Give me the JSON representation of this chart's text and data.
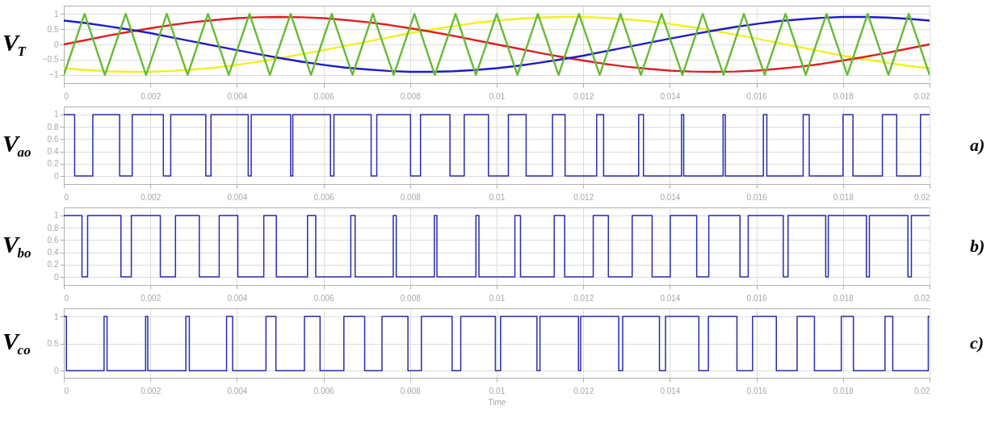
{
  "chart_data": [
    {
      "type": "line",
      "ylabel": "V$_{T}$",
      "xlim": [
        0,
        0.02
      ],
      "ylim": [
        -1.27,
        1.27
      ],
      "xticks": [
        0,
        0.002,
        0.004,
        0.006,
        0.008,
        0.01,
        0.012,
        0.014,
        0.016,
        0.018,
        0.02
      ],
      "yticks": [
        -1,
        -0.5,
        0,
        0.5,
        1
      ],
      "grid": true,
      "x": [
        0,
        0.0005,
        0.001,
        0.0015,
        0.002,
        0.0025,
        0.003,
        0.0035,
        0.004,
        0.0045,
        0.005,
        0.0055,
        0.006,
        0.0065,
        0.007,
        0.0075,
        0.008,
        0.0085,
        0.009,
        0.0095,
        0.01,
        0.0105,
        0.011,
        0.0115,
        0.012,
        0.0125,
        0.013,
        0.0135,
        0.014,
        0.0145,
        0.015,
        0.0155,
        0.016,
        0.0165,
        0.017,
        0.0175,
        0.018,
        0.0185,
        0.019,
        0.0195,
        0.02
      ],
      "series": [
        {
          "color": "#f0f020",
          "values": [
            -0.78,
            -0.84,
            -0.88,
            -0.9,
            -0.9,
            -0.87,
            -0.82,
            -0.76,
            -0.67,
            -0.57,
            -0.45,
            -0.32,
            -0.19,
            -0.05,
            0.09,
            0.23,
            0.37,
            0.49,
            0.6,
            0.7,
            0.78,
            0.84,
            0.88,
            0.9,
            0.9,
            0.87,
            0.82,
            0.76,
            0.67,
            0.57,
            0.45,
            0.32,
            0.19,
            0.05,
            -0.09,
            -0.23,
            -0.37,
            -0.49,
            -0.6,
            -0.7,
            -0.78
          ]
        },
        {
          "color": "#dd2020",
          "values": [
            0,
            0.14,
            0.28,
            0.41,
            0.53,
            0.64,
            0.73,
            0.8,
            0.86,
            0.89,
            0.9,
            0.89,
            0.86,
            0.8,
            0.73,
            0.64,
            0.53,
            0.41,
            0.28,
            0.14,
            0,
            -0.14,
            -0.28,
            -0.41,
            -0.53,
            -0.64,
            -0.73,
            -0.8,
            -0.86,
            -0.89,
            -0.9,
            -0.89,
            -0.86,
            -0.8,
            -0.73,
            -0.64,
            -0.53,
            -0.41,
            -0.28,
            -0.14,
            0
          ]
        },
        {
          "color": "#1c1cc8",
          "values": [
            0.78,
            0.7,
            0.6,
            0.49,
            0.37,
            0.23,
            0.09,
            -0.05,
            -0.19,
            -0.32,
            -0.45,
            -0.57,
            -0.67,
            -0.76,
            -0.82,
            -0.87,
            -0.9,
            -0.9,
            -0.88,
            -0.84,
            -0.78,
            -0.7,
            -0.6,
            -0.49,
            -0.37,
            -0.23,
            -0.09,
            0.05,
            0.19,
            0.32,
            0.45,
            0.57,
            0.67,
            0.76,
            0.82,
            0.87,
            0.9,
            0.9,
            0.88,
            0.84,
            0.78
          ]
        },
        {
          "color": "#66bb33",
          "x": [
            0,
            0.00048,
            0.00095,
            0.00143,
            0.0019,
            0.00238,
            0.00286,
            0.00333,
            0.00381,
            0.00429,
            0.00476,
            0.00524,
            0.00571,
            0.00619,
            0.00667,
            0.00714,
            0.00762,
            0.0081,
            0.00857,
            0.00905,
            0.00952,
            0.01,
            0.01048,
            0.01095,
            0.01143,
            0.0119,
            0.01238,
            0.01286,
            0.01333,
            0.01381,
            0.01429,
            0.01476,
            0.01524,
            0.01571,
            0.01619,
            0.01667,
            0.01714,
            0.01762,
            0.0181,
            0.01857,
            0.01905,
            0.01952,
            0.02
          ],
          "values": [
            -1,
            1,
            -1,
            1,
            -1,
            1,
            -1,
            1,
            -1,
            1,
            -1,
            1,
            -1,
            1,
            -1,
            1,
            -1,
            1,
            -1,
            1,
            -1,
            1,
            -1,
            1,
            -1,
            1,
            -1,
            1,
            -1,
            1,
            -1,
            1,
            -1,
            1,
            -1,
            1,
            -1,
            1,
            -1,
            1,
            -1,
            1,
            -1
          ]
        }
      ]
    },
    {
      "type": "step",
      "ylabel": "V$_{ao}$",
      "annotations": [
        "a)"
      ],
      "xlim": [
        0,
        0.02
      ],
      "ylim": [
        -0.13,
        1.13
      ],
      "xticks": [
        0,
        0.002,
        0.004,
        0.006,
        0.008,
        0.01,
        0.012,
        0.014,
        0.016,
        0.018,
        0.02
      ],
      "yticks": [
        0,
        0.2,
        0.4,
        0.6,
        0.8,
        1
      ],
      "grid": true,
      "series": [
        {
          "color": "#2b2bb0",
          "x": [
            0,
            0.00025,
            0.00067,
            0.00129,
            0.00158,
            0.0023,
            0.00247,
            0.00328,
            0.0034,
            0.00426,
            0.00433,
            0.00524,
            0.00529,
            0.00616,
            0.00624,
            0.0071,
            0.00723,
            0.00801,
            0.00824,
            0.00892,
            0.00925,
            0.00981,
            0.01027,
            0.01068,
            0.01129,
            0.01158,
            0.01231,
            0.01247,
            0.01328,
            0.01339,
            0.01427,
            0.01432,
            0.01523,
            0.01528,
            0.01616,
            0.01624,
            0.01708,
            0.01722,
            0.018,
            0.01823,
            0.01891,
            0.01924,
            0.01979,
            0.02
          ],
          "values": [
            1,
            0,
            1,
            0,
            1,
            0,
            1,
            0,
            1,
            0,
            1,
            0,
            1,
            0,
            1,
            0,
            1,
            0,
            1,
            0,
            1,
            0,
            1,
            0,
            1,
            0,
            1,
            0,
            1,
            0,
            1,
            0,
            1,
            0,
            1,
            0,
            1,
            0,
            1,
            0,
            1,
            0,
            1,
            1
          ]
        }
      ]
    },
    {
      "type": "step",
      "ylabel": "V$_{bo}$",
      "annotations": [
        "b)"
      ],
      "xlim": [
        0,
        0.02
      ],
      "ylim": [
        -0.13,
        1.13
      ],
      "xticks": [
        0,
        0.002,
        0.004,
        0.006,
        0.008,
        0.01,
        0.012,
        0.014,
        0.016,
        0.018,
        0.02
      ],
      "yticks": [
        0,
        0.2,
        0.4,
        0.6,
        0.8,
        1
      ],
      "grid": true,
      "series": [
        {
          "color": "#2b2bb0",
          "x": [
            0,
            0.00042,
            0.00055,
            0.00132,
            0.00156,
            0.00223,
            0.00258,
            0.00313,
            0.00359,
            0.00402,
            0.00462,
            0.00491,
            0.00563,
            0.00582,
            0.00663,
            0.00673,
            0.00761,
            0.00768,
            0.00856,
            0.00862,
            0.00952,
            0.00959,
            0.01042,
            0.01055,
            0.01133,
            0.01157,
            0.01223,
            0.01258,
            0.01313,
            0.01359,
            0.01401,
            0.01462,
            0.0149,
            0.01562,
            0.01581,
            0.01662,
            0.01673,
            0.0176,
            0.01766,
            0.01854,
            0.01861,
            0.0195,
            0.01958,
            0.02
          ],
          "values": [
            1,
            0,
            1,
            0,
            1,
            0,
            1,
            0,
            1,
            0,
            1,
            0,
            1,
            0,
            1,
            0,
            1,
            0,
            1,
            0,
            1,
            0,
            1,
            0,
            1,
            0,
            1,
            0,
            1,
            0,
            1,
            0,
            1,
            0,
            1,
            0,
            1,
            0,
            1,
            0,
            1,
            0,
            1,
            1
          ]
        }
      ]
    },
    {
      "type": "step",
      "ylabel": "V$_{co}$",
      "xlabel": "Time",
      "annotations": [
        "c)"
      ],
      "xlim": [
        0,
        0.02
      ],
      "ylim": [
        -0.13,
        1.15
      ],
      "xticks": [
        0,
        0.002,
        0.004,
        0.006,
        0.008,
        0.01,
        0.012,
        0.014,
        0.016,
        0.018,
        0.02
      ],
      "yticks": [
        0,
        0.5,
        1
      ],
      "grid": true,
      "series": [
        {
          "color": "#2b2bb0",
          "x": [
            0,
            6e-05,
            0.00093,
            0.001,
            0.00189,
            0.00194,
            0.00282,
            0.0029,
            0.00376,
            0.0039,
            0.00467,
            0.0049,
            0.00556,
            0.00592,
            0.00647,
            0.00695,
            0.00735,
            0.00795,
            0.00826,
            0.00897,
            0.00917,
            0.00997,
            0.01009,
            0.01093,
            0.011,
            0.01189,
            0.01194,
            0.01282,
            0.01291,
            0.01376,
            0.0139,
            0.01467,
            0.01489,
            0.01555,
            0.01591,
            0.01646,
            0.01694,
            0.01734,
            0.01796,
            0.01824,
            0.01897,
            0.01915,
            0.01997,
            0.02
          ],
          "values": [
            1,
            0,
            1,
            0,
            1,
            0,
            1,
            0,
            1,
            0,
            1,
            0,
            1,
            0,
            1,
            0,
            1,
            0,
            1,
            0,
            1,
            0,
            1,
            0,
            1,
            0,
            1,
            0,
            1,
            0,
            1,
            0,
            1,
            0,
            1,
            0,
            1,
            0,
            1,
            0,
            1,
            0,
            1,
            1
          ]
        }
      ]
    }
  ]
}
